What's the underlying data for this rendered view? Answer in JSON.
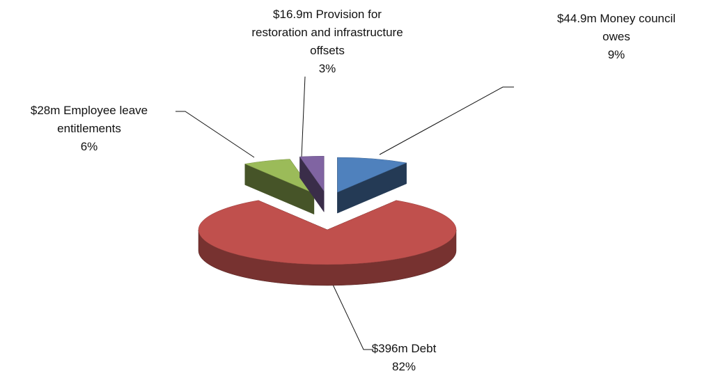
{
  "chart_data": {
    "type": "pie",
    "categories": [
      "$44.9m Money council owes",
      "$396m Debt",
      "$28m Employee leave entitlements",
      "$16.9m Provision for restoration and infrastructure offsets"
    ],
    "values": [
      9,
      82,
      6,
      3
    ],
    "value_labels": [
      "9%",
      "82%",
      "6%",
      "3%"
    ],
    "colors": [
      "#4f81bd",
      "#c0504d",
      "#9bbb59",
      "#8064a2"
    ]
  }
}
